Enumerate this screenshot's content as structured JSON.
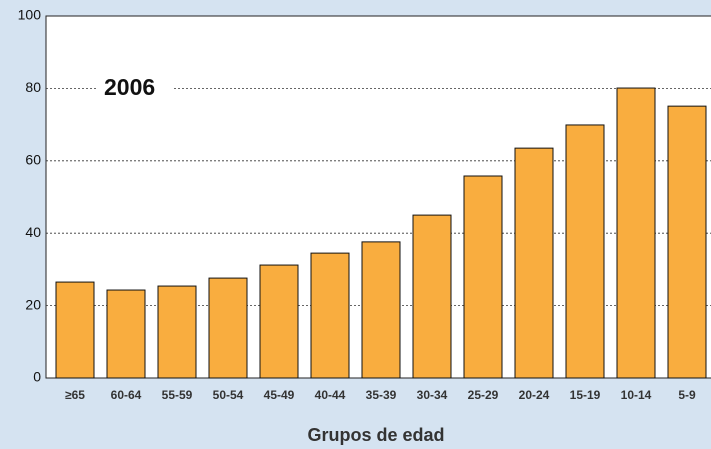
{
  "chart_data": {
    "type": "bar",
    "annotation": "2006",
    "xlabel": "Grupos de edad",
    "categories": [
      "≥65",
      "60-64",
      "55-59",
      "50-54",
      "45-49",
      "40-44",
      "35-39",
      "30-34",
      "25-29",
      "20-24",
      "15-19",
      "10-14",
      "5-9"
    ],
    "values": [
      26.5,
      24.3,
      25.4,
      27.6,
      31.2,
      34.5,
      37.6,
      45,
      55.8,
      63.5,
      69.9,
      80.1,
      75.1
    ],
    "color": "#f9ad3f",
    "ylim": [
      0,
      100
    ],
    "yticks": [
      0,
      20,
      40,
      60,
      80,
      100
    ],
    "grid": true
  }
}
